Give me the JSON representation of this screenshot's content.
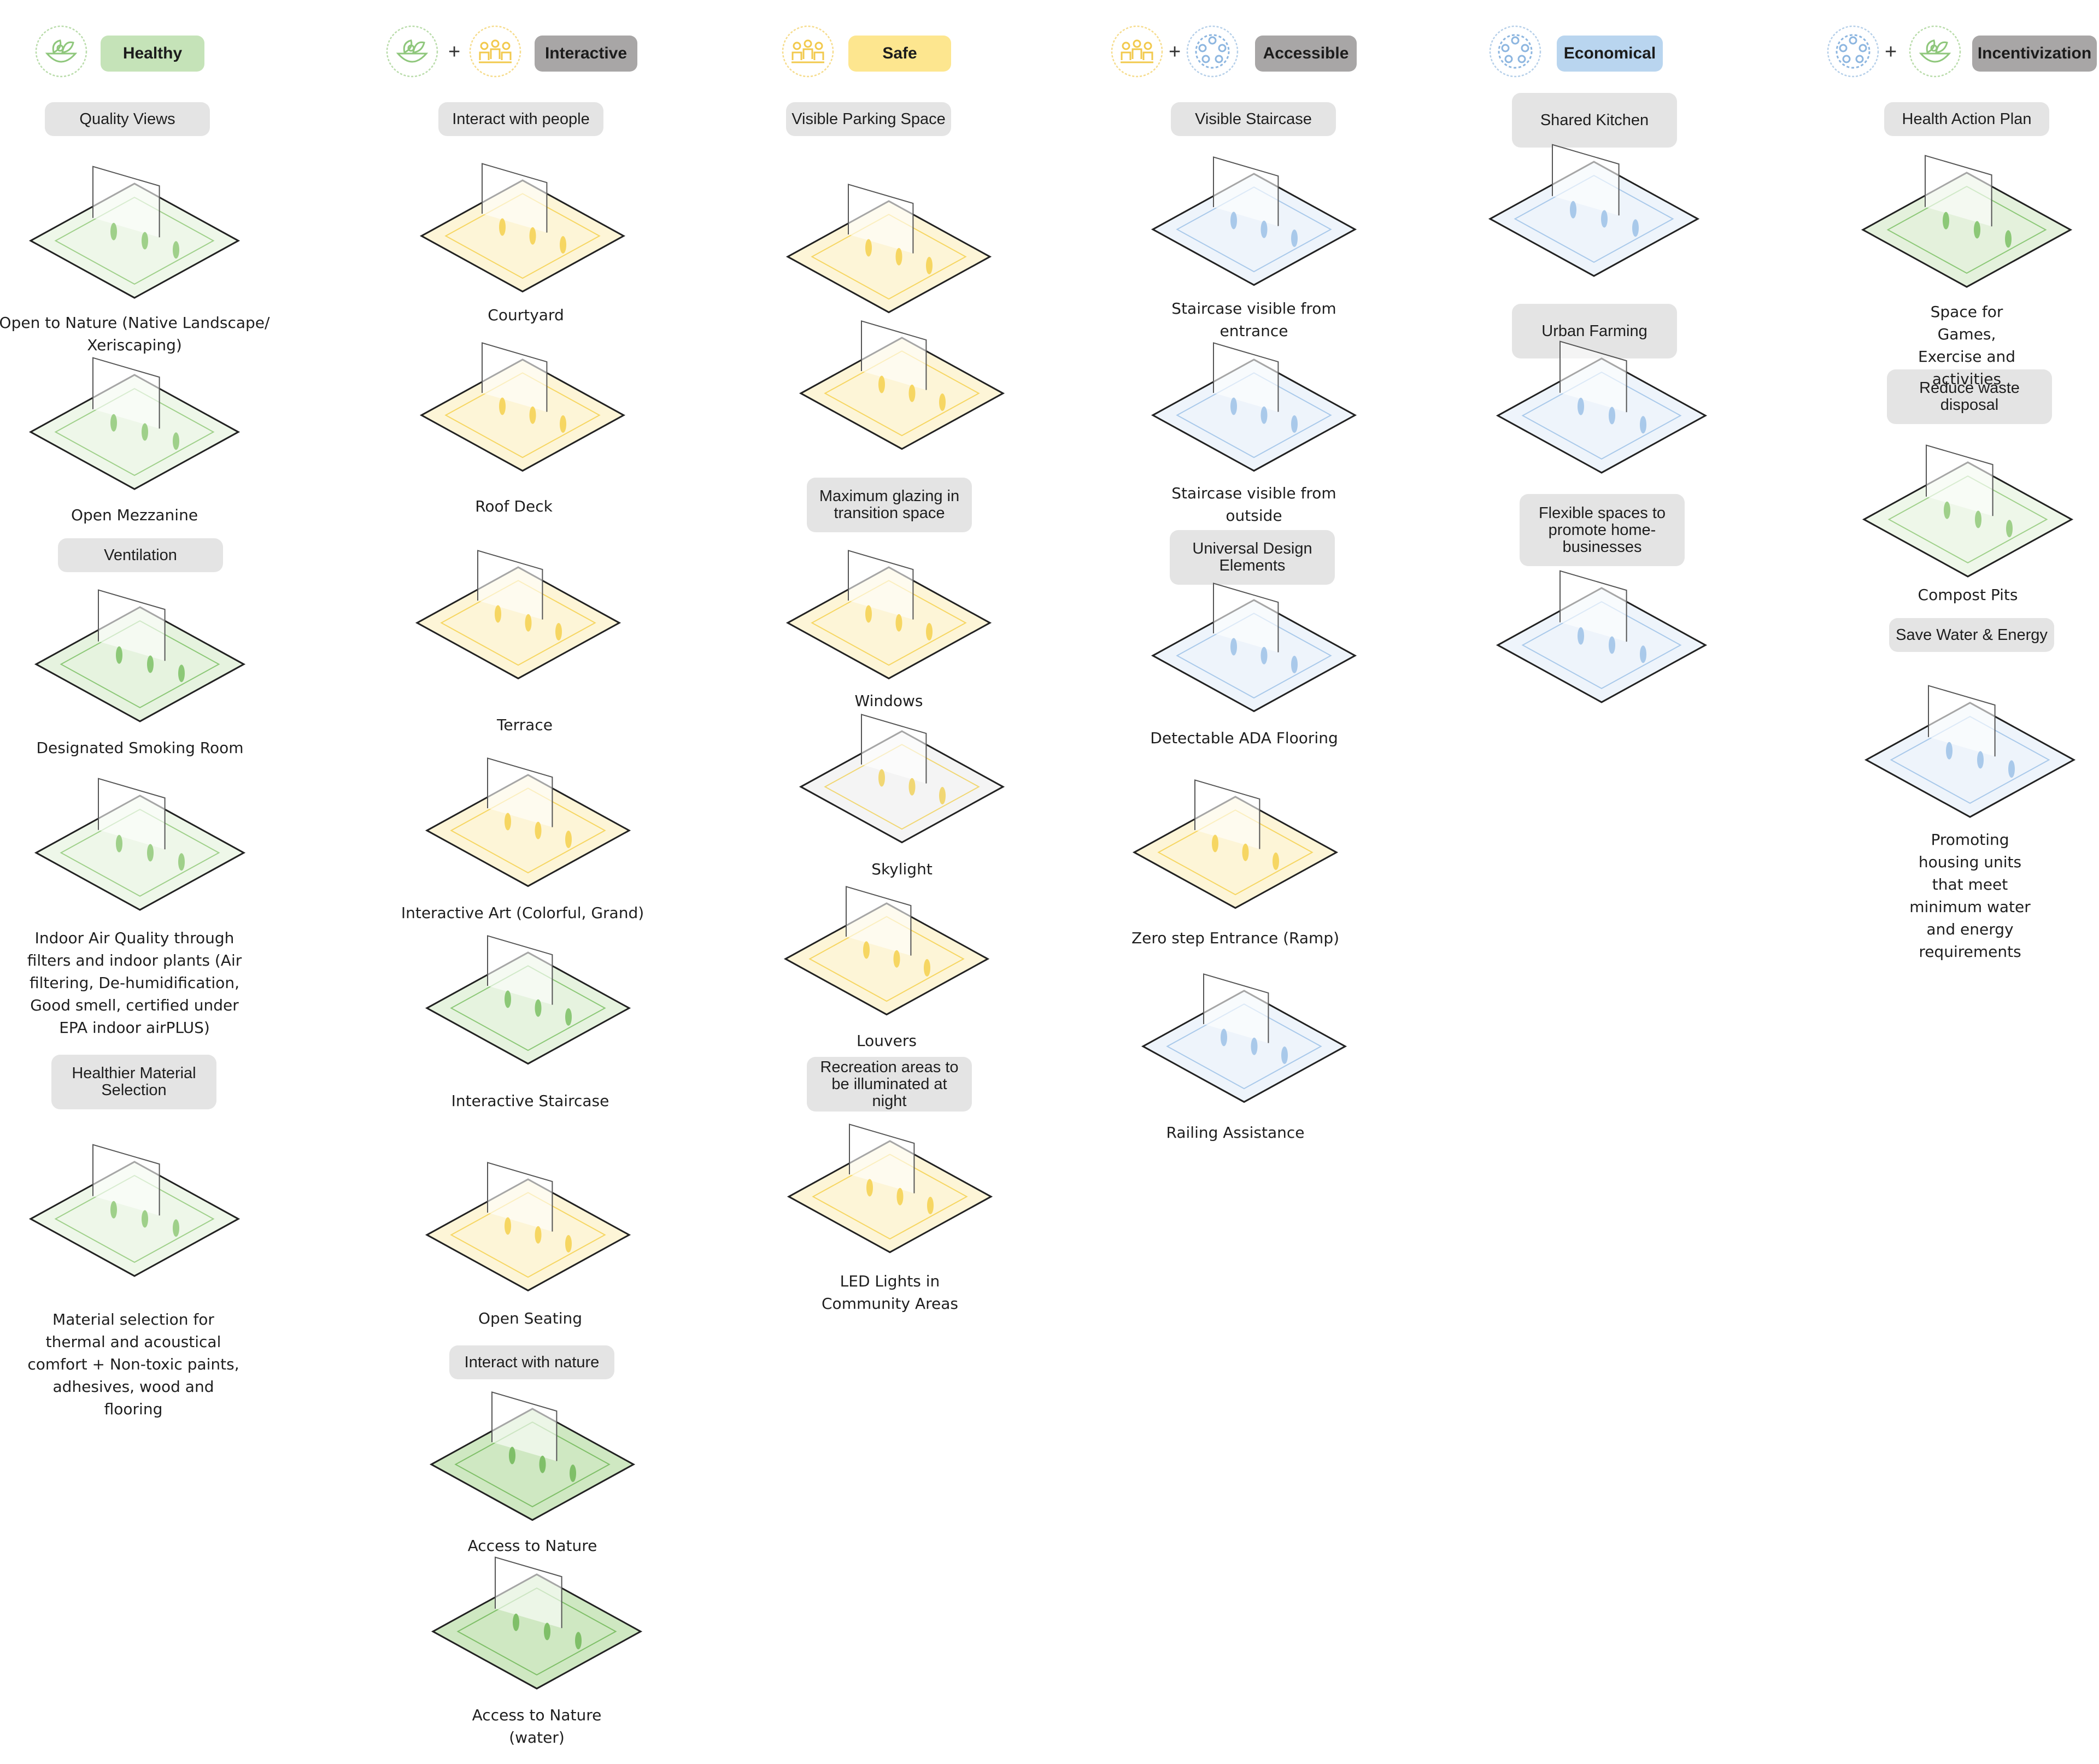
{
  "colors": {
    "healthy": "#c5e3b8",
    "interactive": "#a8a6a6",
    "safe": "#fde68f",
    "accessible": "#a8a6a6",
    "economical": "#b9d5ef",
    "incentivization": "#a8a6a6",
    "pill": "#e4e4e4"
  },
  "icons": {
    "healthy": "leaf-bowl-icon",
    "safe": "people-group-icon",
    "community": "community-circle-icon"
  },
  "columns": {
    "healthy": {
      "tag": "Healthy",
      "sections": [
        "Quality Views",
        "Ventilation",
        "Healthier Material Selection"
      ],
      "captions": [
        "Open to Nature (Native Landscape/\nXeriscaping)",
        "Open Mezzanine",
        "Designated Smoking Room",
        "Indoor Air Quality through\nfilters and indoor plants (Air\nfiltering, De-humidification,\nGood smell, certified under\nEPA indoor airPLUS)",
        "Material selection for\nthermal and acoustical\ncomfort + Non-toxic paints,\nadhesives, wood and\nflooring"
      ]
    },
    "interactive": {
      "tag": "Interactive",
      "plus": "+",
      "sections": [
        "Interact with people",
        "Interact with nature"
      ],
      "captions": [
        "Courtyard",
        "Roof Deck",
        "Terrace",
        "Interactive Art (Colorful, Grand)",
        "Interactive Staircase",
        "Open Seating",
        "Access to Nature",
        "Access to Nature\n(water)"
      ]
    },
    "safe": {
      "tag": "Safe",
      "sections": [
        "Visible Parking Space",
        "Maximum glazing in transition space",
        "Recreation areas to be illuminated at night"
      ],
      "captions": [
        "Windows",
        "Skylight",
        "Louvers",
        "LED Lights in\nCommunity Areas"
      ]
    },
    "accessible": {
      "tag": "Accessible",
      "plus": "+",
      "sections": [
        "Visible Staircase",
        "Universal Design Elements"
      ],
      "captions": [
        "Staircase visible from\nentrance",
        "Staircase visible from\noutside",
        "Detectable ADA Flooring",
        "Zero step Entrance (Ramp)",
        "Railing Assistance"
      ]
    },
    "economical": {
      "tag": "Economical",
      "sections": [
        "Shared Kitchen",
        "Urban Farming",
        "Flexible spaces to promote home-businesses"
      ]
    },
    "incentivization": {
      "tag": "Incentivization",
      "plus": "+",
      "sections": [
        "Health Action Plan",
        "Reduce waste disposal",
        "Save Water & Energy"
      ],
      "captions": [
        "Space for Games,\nExercise and activities",
        "Compost Pits",
        "Promoting housing units\nthat meet minimum water\nand energy requirements"
      ]
    }
  }
}
